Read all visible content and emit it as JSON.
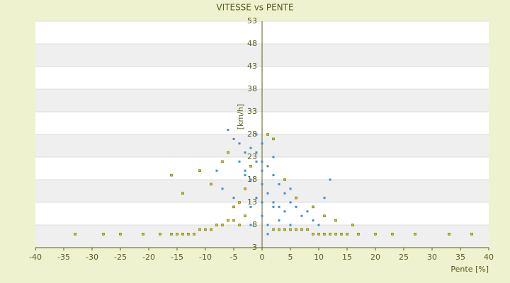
{
  "chart_data": {
    "type": "scatter",
    "title": "VITESSE vs PENTE",
    "x_label": "Pente [%]",
    "y_label": "[km/h]",
    "xlim": [
      -40,
      40
    ],
    "xticks": [
      -40,
      -35,
      -30,
      -25,
      -20,
      -15,
      -10,
      -5,
      0,
      5,
      10,
      15,
      20,
      25,
      30,
      35,
      40
    ],
    "ylim": [
      3,
      53
    ],
    "yticks": [
      53,
      48,
      43,
      38,
      33,
      28,
      23,
      18,
      13,
      8,
      3
    ],
    "grid": true,
    "series": [
      {
        "color": "#3d8fd6",
        "x": [
          -6,
          -5,
          -4,
          -3,
          -3,
          -2,
          -2,
          -1,
          -1,
          0,
          0,
          0,
          1,
          1,
          1,
          2,
          2,
          3,
          3,
          4,
          4,
          5,
          5,
          6,
          7,
          8,
          9,
          10,
          12,
          -7,
          -5,
          -4,
          -2,
          -1,
          0,
          1,
          2,
          3,
          4,
          6,
          -1,
          0,
          -2,
          2,
          -8,
          11,
          3,
          -3,
          5,
          0
        ],
        "values": [
          29,
          27,
          26,
          24,
          20,
          25,
          18,
          24,
          14,
          22,
          17,
          10,
          21,
          15,
          8,
          19,
          12,
          17,
          9,
          15,
          11,
          13,
          8,
          12,
          10,
          11,
          9,
          8,
          18,
          16,
          14,
          22,
          12,
          28,
          20,
          6,
          13,
          7,
          18,
          7,
          22,
          26,
          8,
          23,
          20,
          14,
          12,
          19,
          16,
          13
        ]
      },
      {
        "color": "#c8c800",
        "x": [
          -33,
          -28,
          -25,
          -21,
          -18,
          -16,
          -15,
          -14,
          -13,
          -12,
          -11,
          -10,
          -9,
          -8,
          -7,
          -6,
          -5,
          -4,
          -3,
          -2,
          2,
          3,
          4,
          5,
          6,
          7,
          8,
          9,
          10,
          11,
          12,
          13,
          14,
          15,
          17,
          20,
          23,
          27,
          33,
          37,
          -16,
          -14,
          -11,
          -9,
          -7,
          -5,
          -3,
          4,
          6,
          9,
          11,
          13,
          1,
          2,
          -4,
          -6,
          16
        ],
        "values": [
          6,
          6,
          6,
          6,
          6,
          6,
          6,
          6,
          6,
          6,
          7,
          7,
          7,
          8,
          8,
          9,
          9,
          8,
          10,
          21,
          7,
          7,
          7,
          7,
          7,
          7,
          7,
          6,
          6,
          6,
          6,
          6,
          6,
          6,
          6,
          6,
          6,
          6,
          6,
          6,
          19,
          15,
          20,
          17,
          22,
          12,
          16,
          18,
          14,
          12,
          10,
          9,
          28,
          27,
          13,
          24,
          8
        ]
      }
    ]
  }
}
